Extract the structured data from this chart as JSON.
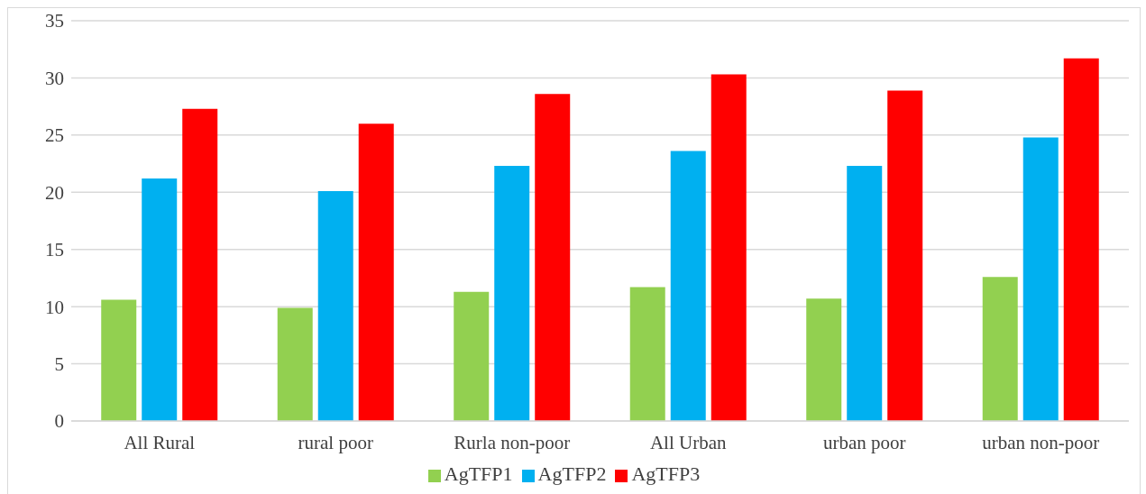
{
  "chart_data": {
    "type": "bar",
    "categories": [
      "All Rural",
      "rural poor",
      "Rurla non-poor",
      "All Urban",
      "urban poor",
      "urban non-poor"
    ],
    "series": [
      {
        "name": "AgTFP1",
        "color": "#92d050",
        "values": [
          10.6,
          9.9,
          11.3,
          11.7,
          10.7,
          12.6
        ]
      },
      {
        "name": "AgTFP2",
        "color": "#00b0f0",
        "values": [
          21.2,
          20.1,
          22.3,
          23.6,
          22.3,
          24.8
        ]
      },
      {
        "name": "AgTFP3",
        "color": "#ff0000",
        "values": [
          27.3,
          26.0,
          28.6,
          30.3,
          28.9,
          31.7
        ]
      }
    ],
    "ylim": [
      0,
      35
    ],
    "yticks": [
      0,
      5,
      10,
      15,
      20,
      25,
      30,
      35
    ],
    "grid": "y",
    "legend": "bottom"
  }
}
